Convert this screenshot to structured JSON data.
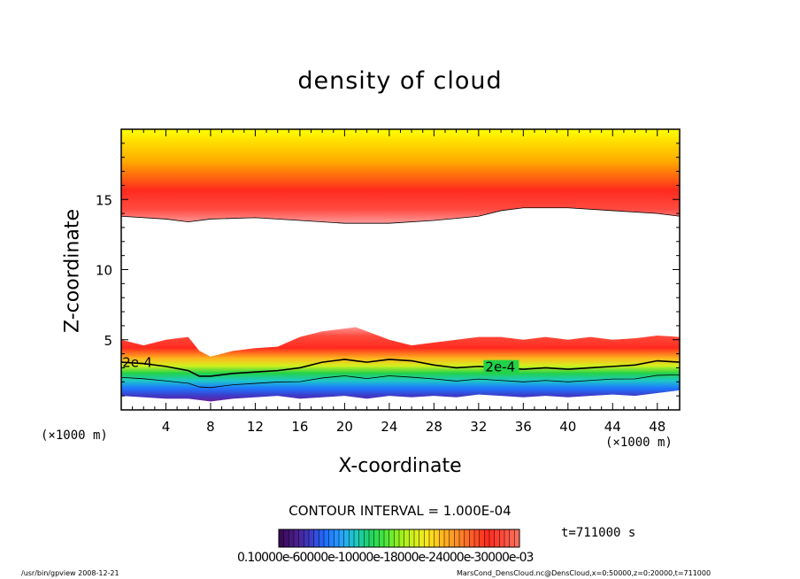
{
  "window": {
    "footer_left": "/usr/bin/gpview   2008-12-21",
    "footer_right": "MarsCond_DensCloud.nc@DensCloud,x=0:50000,z=0:20000,t=711000"
  },
  "chart_data": {
    "type": "heatmap",
    "title": "density of cloud",
    "xlabel": "X-coordinate",
    "ylabel": "Z-coordinate",
    "x_unit_left": "(×1000 m)",
    "x_unit_right": "(×1000 m)",
    "xlim": [
      0,
      50
    ],
    "ylim": [
      0,
      20
    ],
    "x_ticks": [
      4,
      8,
      12,
      16,
      20,
      24,
      28,
      32,
      36,
      40,
      44,
      48
    ],
    "y_ticks": [
      5,
      10,
      15
    ],
    "contour_interval_text": "CONTOUR INTERVAL = 1.000E-04",
    "contour_label": "2e-4",
    "time_text": "t=711000 s",
    "colorbar_labels_text": "0.10000e-60000e-10000e-18000e-24000e-30000e-03",
    "colors": {
      "low": "#5a1e8c",
      "mid_low": "#1e78ff",
      "mid": "#22d24a",
      "mid_high": "#ffe600",
      "high": "#ff2a1e",
      "top": "#ffff00"
    },
    "upper_layer": {
      "x": [
        0,
        4,
        6,
        8,
        12,
        16,
        20,
        24,
        28,
        32,
        34,
        36,
        40,
        44,
        48,
        50
      ],
      "bottom_z": [
        13.8,
        13.6,
        13.4,
        13.6,
        13.7,
        13.5,
        13.3,
        13.3,
        13.5,
        13.8,
        14.2,
        14.4,
        14.4,
        14.2,
        14.0,
        13.8
      ],
      "top_z": [
        20,
        20,
        20,
        20,
        20,
        20,
        20,
        20,
        20,
        20,
        20,
        20,
        20,
        20,
        20,
        20
      ],
      "peak_z": 15.5
    },
    "lower_layer": {
      "x": [
        0,
        2,
        4,
        6,
        7,
        8,
        10,
        12,
        14,
        16,
        18,
        20,
        21,
        22,
        24,
        26,
        28,
        30,
        32,
        34,
        36,
        38,
        40,
        42,
        44,
        46,
        48,
        50
      ],
      "top_z": [
        5.0,
        4.6,
        5.0,
        5.2,
        4.2,
        3.8,
        4.2,
        4.4,
        4.5,
        5.2,
        5.6,
        5.8,
        5.9,
        5.6,
        5.0,
        4.6,
        4.8,
        5.0,
        5.2,
        5.2,
        5.0,
        5.2,
        5.0,
        5.2,
        5.0,
        5.1,
        5.3,
        5.2
      ],
      "contour_2e4_z": [
        3.4,
        3.3,
        3.1,
        2.8,
        2.4,
        2.4,
        2.6,
        2.7,
        2.8,
        3.0,
        3.4,
        3.6,
        3.5,
        3.4,
        3.6,
        3.5,
        3.2,
        3.0,
        3.1,
        3.0,
        2.9,
        3.0,
        2.9,
        3.0,
        3.1,
        3.2,
        3.5,
        3.4
      ],
      "bottom_z": [
        1.0,
        0.9,
        0.8,
        0.8,
        0.7,
        0.6,
        0.8,
        0.9,
        1.0,
        0.8,
        0.9,
        1.0,
        0.9,
        0.8,
        1.0,
        0.9,
        1.0,
        0.9,
        1.1,
        1.0,
        0.9,
        1.0,
        0.9,
        1.0,
        1.1,
        1.0,
        1.2,
        1.4
      ]
    },
    "colorbar_colors": [
      "#3a0a5a",
      "#4a1e8c",
      "#3c3cc8",
      "#1e6eff",
      "#28a0ff",
      "#1ec8c8",
      "#1ed264",
      "#46e63c",
      "#96f01e",
      "#d2f01e",
      "#ffe61e",
      "#ffb41e",
      "#ff8c28",
      "#ff5a28",
      "#ff2a1e",
      "#ff4a3c",
      "#ff6e5a"
    ]
  }
}
